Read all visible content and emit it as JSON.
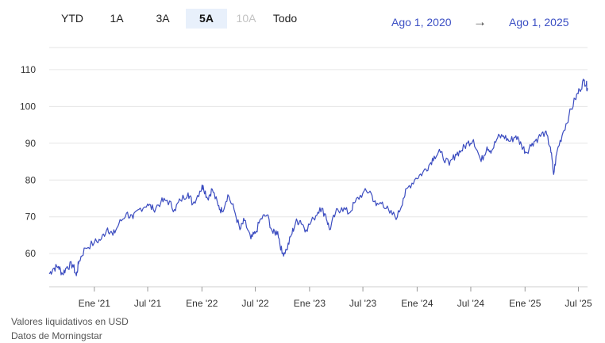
{
  "range_tabs": [
    {
      "label": "YTD",
      "state": "normal"
    },
    {
      "label": "1A",
      "state": "normal"
    },
    {
      "label": "3A",
      "state": "normal"
    },
    {
      "label": "5A",
      "state": "active"
    },
    {
      "label": "10A",
      "state": "disabled"
    },
    {
      "label": "Todo",
      "state": "normal"
    }
  ],
  "date_range": {
    "start": "Ago 1, 2020",
    "arrow": "→",
    "end": "Ago 1, 2025"
  },
  "footer": {
    "line1": "Valores liquidativos en USD",
    "line2": "Datos de Morningstar"
  },
  "colors": {
    "line": "#3b4cc0",
    "grid": "#e6e6e6",
    "axis": "#cfcfcf",
    "active_tab_bg": "#e8f0fb",
    "link": "#3b4fc4"
  },
  "chart_data": {
    "type": "line",
    "ylim": [
      51,
      116
    ],
    "xlim": [
      "2020-08-01",
      "2025-08-01"
    ],
    "y_ticks": [
      60,
      70,
      80,
      90,
      100,
      110
    ],
    "x_ticks": [
      {
        "date": "2021-01-01",
        "label": "Ene '21"
      },
      {
        "date": "2021-07-01",
        "label": "Jul '21"
      },
      {
        "date": "2022-01-01",
        "label": "Ene '22"
      },
      {
        "date": "2022-07-01",
        "label": "Jul '22"
      },
      {
        "date": "2023-01-01",
        "label": "Ene '23"
      },
      {
        "date": "2023-07-01",
        "label": "Jul '23"
      },
      {
        "date": "2024-01-01",
        "label": "Ene '24"
      },
      {
        "date": "2024-07-01",
        "label": "Jul '24"
      },
      {
        "date": "2025-01-01",
        "label": "Ene '25"
      },
      {
        "date": "2025-07-01",
        "label": "Jul '25"
      }
    ],
    "grid": true,
    "series": [
      {
        "points": [
          [
            "2020-08-01",
            54.5
          ],
          [
            "2020-08-15",
            56.0
          ],
          [
            "2020-09-01",
            56.5
          ],
          [
            "2020-09-15",
            54.5
          ],
          [
            "2020-10-01",
            56.5
          ],
          [
            "2020-10-20",
            57.0
          ],
          [
            "2020-11-01",
            54.0
          ],
          [
            "2020-11-10",
            58.0
          ],
          [
            "2020-12-01",
            61.5
          ],
          [
            "2021-01-01",
            63.0
          ],
          [
            "2021-01-25",
            64.0
          ],
          [
            "2021-02-15",
            67.0
          ],
          [
            "2021-03-05",
            65.0
          ],
          [
            "2021-03-25",
            68.0
          ],
          [
            "2021-04-20",
            71.0
          ],
          [
            "2021-05-12",
            69.5
          ],
          [
            "2021-06-01",
            72.0
          ],
          [
            "2021-07-01",
            73.5
          ],
          [
            "2021-07-20",
            72.0
          ],
          [
            "2021-08-15",
            74.0
          ],
          [
            "2021-09-05",
            74.5
          ],
          [
            "2021-09-30",
            72.0
          ],
          [
            "2021-10-20",
            74.5
          ],
          [
            "2021-11-15",
            76.5
          ],
          [
            "2021-12-01",
            73.5
          ],
          [
            "2021-12-25",
            77.0
          ],
          [
            "2022-01-05",
            78.5
          ],
          [
            "2022-01-20",
            75.0
          ],
          [
            "2022-02-05",
            77.5
          ],
          [
            "2022-02-25",
            73.0
          ],
          [
            "2022-03-10",
            71.5
          ],
          [
            "2022-03-30",
            76.0
          ],
          [
            "2022-04-20",
            72.0
          ],
          [
            "2022-05-10",
            66.5
          ],
          [
            "2022-05-25",
            69.0
          ],
          [
            "2022-06-16",
            64.0
          ],
          [
            "2022-07-01",
            65.5
          ],
          [
            "2022-07-20",
            69.5
          ],
          [
            "2022-08-10",
            70.5
          ],
          [
            "2022-08-30",
            65.5
          ],
          [
            "2022-09-15",
            66.0
          ],
          [
            "2022-09-30",
            60.0
          ],
          [
            "2022-10-15",
            61.0
          ],
          [
            "2022-10-31",
            65.0
          ],
          [
            "2022-11-15",
            68.5
          ],
          [
            "2022-12-01",
            69.0
          ],
          [
            "2022-12-20",
            66.5
          ],
          [
            "2023-01-15",
            69.5
          ],
          [
            "2023-02-05",
            72.5
          ],
          [
            "2023-02-25",
            70.5
          ],
          [
            "2023-03-10",
            66.5
          ],
          [
            "2023-03-30",
            71.0
          ],
          [
            "2023-04-20",
            72.5
          ],
          [
            "2023-05-15",
            71.0
          ],
          [
            "2023-06-05",
            74.0
          ],
          [
            "2023-07-01",
            76.5
          ],
          [
            "2023-07-25",
            77.0
          ],
          [
            "2023-08-15",
            73.0
          ],
          [
            "2023-09-05",
            74.0
          ],
          [
            "2023-09-30",
            71.0
          ],
          [
            "2023-10-26",
            70.0
          ],
          [
            "2023-11-15",
            75.0
          ],
          [
            "2023-12-01",
            78.0
          ],
          [
            "2023-12-28",
            80.5
          ],
          [
            "2024-01-20",
            82.0
          ],
          [
            "2024-02-10",
            84.0
          ],
          [
            "2024-02-28",
            86.5
          ],
          [
            "2024-03-20",
            87.5
          ],
          [
            "2024-04-19",
            84.0
          ],
          [
            "2024-05-10",
            87.0
          ],
          [
            "2024-05-30",
            88.0
          ],
          [
            "2024-06-20",
            90.0
          ],
          [
            "2024-07-10",
            91.0
          ],
          [
            "2024-08-05",
            85.0
          ],
          [
            "2024-08-25",
            89.0
          ],
          [
            "2024-09-10",
            88.0
          ],
          [
            "2024-09-30",
            91.5
          ],
          [
            "2024-10-20",
            92.0
          ],
          [
            "2024-11-10",
            90.5
          ],
          [
            "2024-12-01",
            92.0
          ],
          [
            "2024-12-20",
            89.5
          ],
          [
            "2025-01-05",
            87.5
          ],
          [
            "2025-01-25",
            90.0
          ],
          [
            "2025-02-15",
            91.5
          ],
          [
            "2025-03-10",
            93.0
          ],
          [
            "2025-03-28",
            89.0
          ],
          [
            "2025-04-08",
            81.5
          ],
          [
            "2025-04-20",
            88.0
          ],
          [
            "2025-05-10",
            93.0
          ],
          [
            "2025-05-30",
            97.5
          ],
          [
            "2025-06-20",
            102.0
          ],
          [
            "2025-07-05",
            104.5
          ],
          [
            "2025-07-20",
            107.0
          ],
          [
            "2025-07-28",
            106.0
          ],
          [
            "2025-08-01",
            104.5
          ]
        ]
      }
    ]
  }
}
